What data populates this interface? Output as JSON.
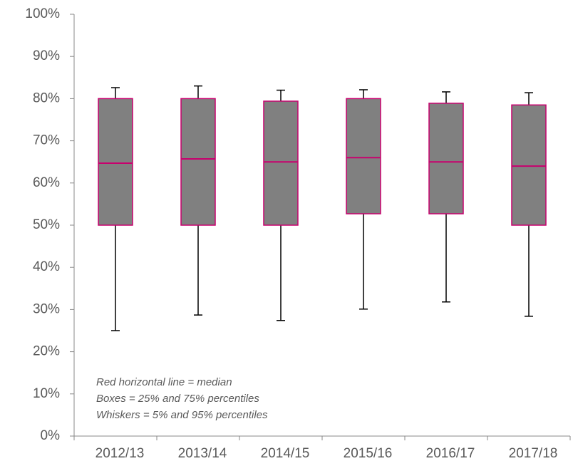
{
  "chart_data": {
    "type": "box",
    "categories": [
      "2012/13",
      "2013/14",
      "2014/15",
      "2015/16",
      "2016/17",
      "2017/18"
    ],
    "whisker_low": [
      25,
      28.7,
      27.4,
      30.1,
      31.8,
      28.4
    ],
    "q1": [
      50,
      50,
      50,
      52.7,
      52.7,
      50
    ],
    "median": [
      64.7,
      65.7,
      65,
      66,
      65,
      64
    ],
    "q3": [
      80,
      80,
      79.4,
      80,
      78.9,
      78.5
    ],
    "whisker_high": [
      82.6,
      83,
      82,
      82.1,
      81.6,
      81.4
    ],
    "box_color": "#808080",
    "border_color": "#c8006e",
    "whisker_color": "#000000",
    "ylim": [
      0,
      100
    ],
    "yticks": [
      {
        "value": 0,
        "label": "0%"
      },
      {
        "value": 10,
        "label": "10%"
      },
      {
        "value": 20,
        "label": "20%"
      },
      {
        "value": 30,
        "label": "30%"
      },
      {
        "value": 40,
        "label": "40%"
      },
      {
        "value": 50,
        "label": "50%"
      },
      {
        "value": 60,
        "label": "60%"
      },
      {
        "value": 70,
        "label": "70%"
      },
      {
        "value": 80,
        "label": "80%"
      },
      {
        "value": 90,
        "label": "90%"
      },
      {
        "value": 100,
        "label": "100%"
      }
    ],
    "annotations": [
      "Red horizontal line = median",
      "Boxes = 25% and 75% percentiles",
      "Whiskers = 5% and 95% percentiles"
    ],
    "grid": false
  }
}
